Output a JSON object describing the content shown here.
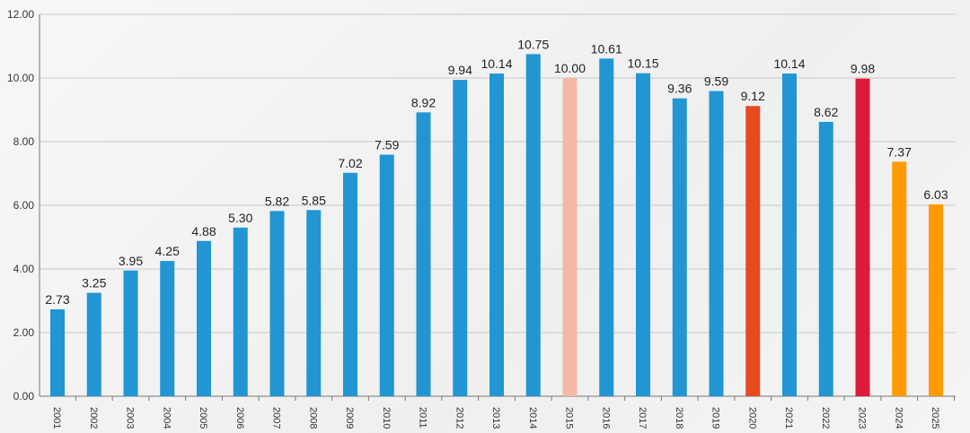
{
  "chart_data": {
    "type": "bar",
    "title": "",
    "xlabel": "",
    "ylabel": "",
    "ylim": [
      0,
      12
    ],
    "yticks": [
      "0.00",
      "2.00",
      "4.00",
      "6.00",
      "8.00",
      "10.00",
      "12.00"
    ],
    "grid": true,
    "categories": [
      "2001",
      "2002",
      "2003",
      "2004",
      "2005",
      "2006",
      "2007",
      "2008",
      "2009",
      "2010",
      "2011",
      "2012",
      "2013",
      "2014",
      "2015",
      "2016",
      "2017",
      "2018",
      "2019",
      "2020",
      "2021",
      "2022",
      "2023",
      "2024",
      "2025"
    ],
    "values": [
      2.73,
      3.25,
      3.95,
      4.25,
      4.88,
      5.3,
      5.82,
      5.85,
      7.02,
      7.59,
      8.92,
      9.94,
      10.14,
      10.75,
      10.0,
      10.61,
      10.15,
      9.36,
      9.59,
      9.12,
      10.14,
      8.62,
      9.98,
      7.37,
      6.03
    ],
    "labels": [
      "2.73",
      "3.25",
      "3.95",
      "4.25",
      "4.88",
      "5.30",
      "5.82",
      "5.85",
      "7.02",
      "7.59",
      "8.92",
      "9.94",
      "10.14",
      "10.75",
      "10.00",
      "10.61",
      "10.15",
      "9.36",
      "9.59",
      "9.12",
      "10.14",
      "8.62",
      "9.98",
      "7.37",
      "6.03"
    ],
    "colors": {
      "default": "#2196d3",
      "2015": "#f5b7a6",
      "2020": "#e84a1f",
      "2023": "#dc1a3a",
      "2024": "#ff9a00",
      "2025": "#ff9a00"
    }
  }
}
